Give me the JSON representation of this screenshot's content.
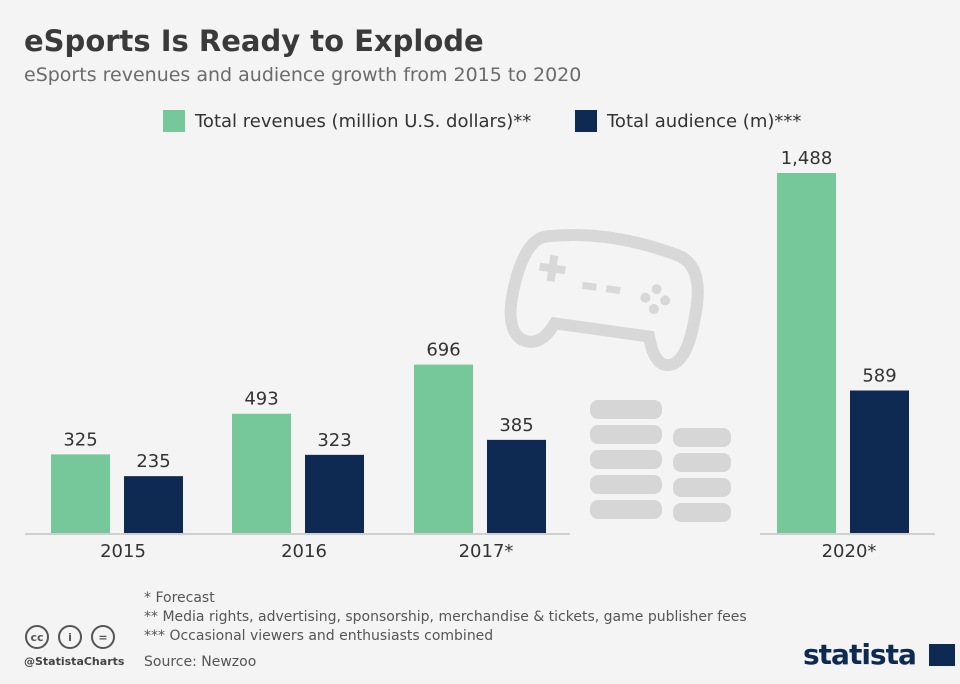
{
  "title": "eSports Is Ready to Explode",
  "subtitle": "eSports revenues and audience growth from 2015 to 2020",
  "chart_data": {
    "type": "bar",
    "categories": [
      "2015",
      "2016",
      "2017*",
      "2020*"
    ],
    "series": [
      {
        "name": "Total revenues (million U.S. dollars)**",
        "color": "#76c799",
        "values": [
          325,
          493,
          696,
          1488
        ],
        "labels": [
          "325",
          "493",
          "696",
          "1,488"
        ]
      },
      {
        "name": "Total audience (m)***",
        "color": "#0e2a52",
        "values": [
          235,
          323,
          385,
          589
        ],
        "labels": [
          "235",
          "323",
          "385",
          "589"
        ]
      }
    ],
    "legend_position": "top",
    "grid": false,
    "ylim": [
      0,
      1488
    ]
  },
  "footnotes": [
    "*     Forecast",
    "**   Media rights, advertising, sponsorship, merchandise & tickets, game publisher fees",
    "*** Occasional viewers and enthusiasts combined"
  ],
  "source": "Source: Newzoo",
  "handle": "@StatistaCharts",
  "brand": "statista",
  "icons": [
    "gamepad-icon",
    "coin-stack-icon",
    "cc-icon",
    "attribution-icon",
    "no-derivatives-icon"
  ]
}
